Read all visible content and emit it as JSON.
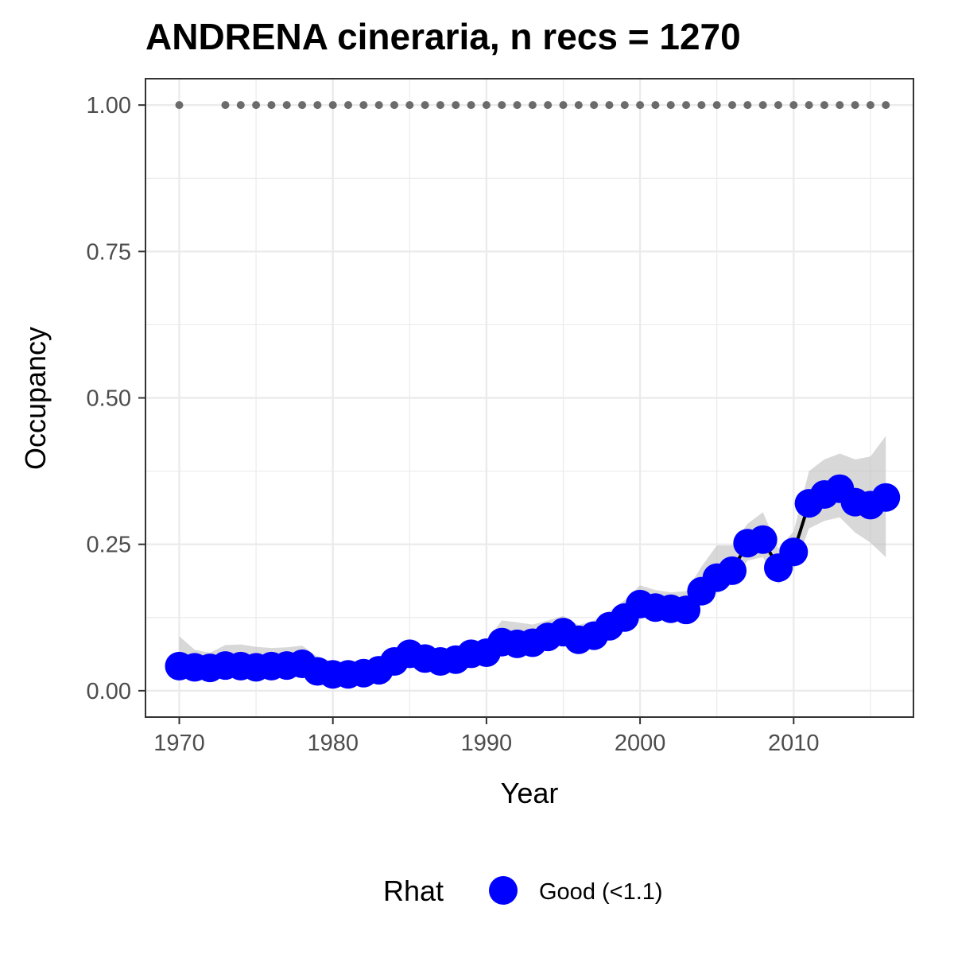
{
  "chart_data": {
    "type": "line",
    "title": "ANDRENA cineraria, n recs = 1270",
    "xlabel": "Year",
    "ylabel": "Occupancy",
    "xlim": [
      1967.8,
      2017.8
    ],
    "ylim": [
      -0.045,
      1.045
    ],
    "x_ticks": [
      1970,
      1980,
      1990,
      2000,
      2010
    ],
    "x_tick_labels": [
      "1970",
      "1980",
      "1990",
      "2000",
      "2010"
    ],
    "y_ticks": [
      0,
      0.25,
      0.5,
      0.75,
      1.0
    ],
    "y_tick_labels": [
      "0.00",
      "0.25",
      "0.50",
      "0.75",
      "1.00"
    ],
    "grid": true,
    "legend_position": "bottom",
    "legend": {
      "title": "Rhat",
      "entries": [
        {
          "label": "Good (<1.1)",
          "color": "#0000ff"
        }
      ]
    },
    "colors": {
      "points": "#0000ff",
      "line": "#000000",
      "ribbon": "#bebebe",
      "record_dots": "#6b6b6b",
      "grid": "#ebebeb",
      "panel_border": "#333333"
    },
    "series": [
      {
        "name": "Good (<1.1)",
        "x": [
          1970,
          1971,
          1972,
          1973,
          1974,
          1975,
          1976,
          1977,
          1978,
          1979,
          1980,
          1981,
          1982,
          1983,
          1984,
          1985,
          1986,
          1987,
          1988,
          1989,
          1990,
          1991,
          1992,
          1993,
          1994,
          1995,
          1996,
          1997,
          1998,
          1999,
          2000,
          2001,
          2002,
          2003,
          2004,
          2005,
          2006,
          2007,
          2008,
          2009,
          2010,
          2011,
          2012,
          2013,
          2014,
          2015,
          2016
        ],
        "y": [
          0.042,
          0.04,
          0.039,
          0.043,
          0.042,
          0.04,
          0.042,
          0.043,
          0.046,
          0.033,
          0.028,
          0.028,
          0.03,
          0.035,
          0.05,
          0.063,
          0.055,
          0.05,
          0.053,
          0.063,
          0.065,
          0.083,
          0.08,
          0.082,
          0.092,
          0.1,
          0.087,
          0.094,
          0.11,
          0.125,
          0.148,
          0.142,
          0.14,
          0.138,
          0.17,
          0.193,
          0.205,
          0.252,
          0.258,
          0.21,
          0.237,
          0.32,
          0.335,
          0.345,
          0.322,
          0.317,
          0.33
        ],
        "lower": [
          0.025,
          0.027,
          0.026,
          0.028,
          0.028,
          0.027,
          0.028,
          0.029,
          0.031,
          0.021,
          0.017,
          0.017,
          0.019,
          0.023,
          0.036,
          0.048,
          0.041,
          0.036,
          0.039,
          0.048,
          0.05,
          0.067,
          0.064,
          0.066,
          0.075,
          0.083,
          0.071,
          0.078,
          0.093,
          0.106,
          0.128,
          0.122,
          0.12,
          0.117,
          0.148,
          0.17,
          0.181,
          0.222,
          0.228,
          0.182,
          0.206,
          0.277,
          0.29,
          0.296,
          0.27,
          0.253,
          0.228
        ],
        "upper": [
          0.093,
          0.07,
          0.065,
          0.078,
          0.079,
          0.075,
          0.073,
          0.074,
          0.077,
          0.058,
          0.05,
          0.048,
          0.05,
          0.056,
          0.072,
          0.085,
          0.076,
          0.07,
          0.073,
          0.085,
          0.085,
          0.12,
          0.117,
          0.113,
          0.12,
          0.128,
          0.112,
          0.12,
          0.136,
          0.155,
          0.18,
          0.172,
          0.168,
          0.17,
          0.212,
          0.248,
          0.248,
          0.285,
          0.305,
          0.243,
          0.272,
          0.375,
          0.395,
          0.405,
          0.395,
          0.4,
          0.435
        ]
      }
    ],
    "record_years": [
      1970,
      1973,
      1974,
      1975,
      1976,
      1977,
      1978,
      1979,
      1980,
      1981,
      1982,
      1983,
      1984,
      1985,
      1986,
      1987,
      1988,
      1989,
      1990,
      1991,
      1992,
      1993,
      1994,
      1995,
      1996,
      1997,
      1998,
      1999,
      2000,
      2001,
      2002,
      2003,
      2004,
      2005,
      2006,
      2007,
      2008,
      2009,
      2010,
      2011,
      2012,
      2013,
      2014,
      2015,
      2016
    ],
    "record_value": 1.0
  }
}
